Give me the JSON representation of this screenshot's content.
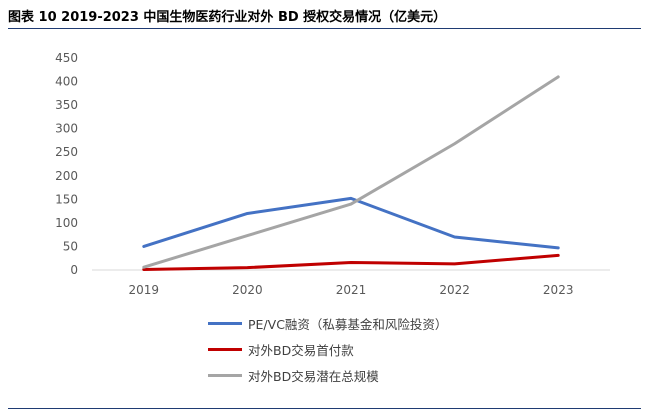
{
  "header": {
    "title": "图表 10 2019-2023  中国生物医药行业对外 BD 授权交易情况（亿美元）"
  },
  "chart_data": {
    "type": "line",
    "title": "",
    "xlabel": "",
    "ylabel": "",
    "x": [
      "2019",
      "2020",
      "2021",
      "2022",
      "2023"
    ],
    "ylim": [
      0,
      450
    ],
    "yticks": [
      0,
      50,
      100,
      150,
      200,
      250,
      300,
      350,
      400,
      450
    ],
    "grid": false,
    "legend_position": "bottom",
    "series": [
      {
        "name": "PE/VC融资（私募基金和风险投资）",
        "color": "#4472C4",
        "values": [
          50,
          120,
          152,
          70,
          47
        ]
      },
      {
        "name": "对外BD交易首付款",
        "color": "#C00000",
        "values": [
          1,
          5,
          16,
          13,
          31
        ]
      },
      {
        "name": "对外BD交易潜在总规模",
        "color": "#A5A5A5",
        "values": [
          6,
          73,
          140,
          268,
          410
        ]
      }
    ]
  }
}
